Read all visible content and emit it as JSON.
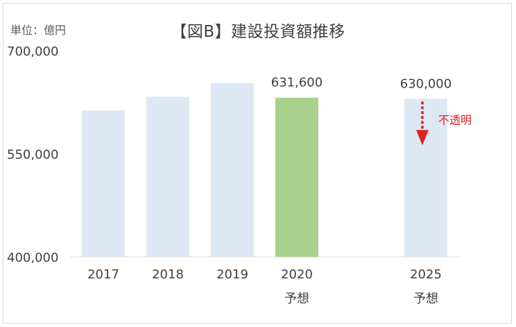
{
  "unit_label": "単位：億円",
  "chart_data": {
    "type": "bar",
    "title": "【図B】建設投資額推移",
    "categories": [
      {
        "line1": "2017",
        "line2": ""
      },
      {
        "line1": "2018",
        "line2": ""
      },
      {
        "line1": "2019",
        "line2": ""
      },
      {
        "line1": "2020",
        "line2": "予想"
      },
      {
        "line1": "2025",
        "line2": "予想"
      }
    ],
    "values": [
      613000,
      633000,
      653000,
      631600,
      630000
    ],
    "bar_colors": [
      "#dde8f4",
      "#dde8f4",
      "#dde8f4",
      "#a9d18e",
      "#dde8f4"
    ],
    "data_labels": [
      null,
      null,
      null,
      "631,600",
      "630,000"
    ],
    "ylim": [
      400000,
      700000
    ],
    "yticks": [
      "400,000",
      "550,000",
      "700,000"
    ],
    "ytick_values": [
      400000,
      550000,
      700000
    ],
    "annotation": {
      "text": "不透明",
      "category_index": 4,
      "color": "#e02020"
    }
  }
}
